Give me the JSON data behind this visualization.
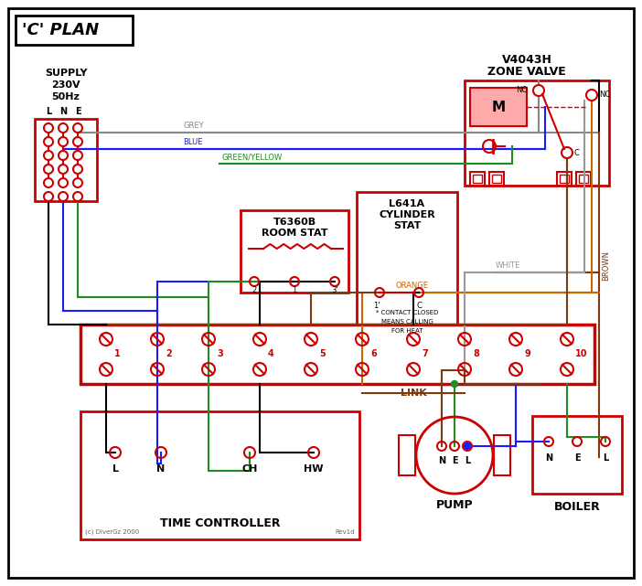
{
  "R": "#cc0000",
  "GR": "#888888",
  "BL": "#1a1aff",
  "GN": "#228B22",
  "BR": "#7B3A10",
  "WH": "#999999",
  "OR": "#CC6600",
  "BK": "#000000",
  "PK": "#ffaaaa",
  "title": "'C' PLAN",
  "zone_valve_title": [
    "V4043H",
    "ZONE VALVE"
  ],
  "room_stat_title": [
    "T6360B",
    "ROOM STAT"
  ],
  "cyl_stat_title": [
    "L641A",
    "CYLINDER",
    "STAT"
  ],
  "terminals": [
    "1",
    "2",
    "3",
    "4",
    "5",
    "6",
    "7",
    "8",
    "9",
    "10"
  ],
  "tc_terms": [
    "L",
    "N",
    "CH",
    "HW"
  ],
  "pump_terms": [
    "N",
    "E",
    "L"
  ],
  "boiler_terms": [
    "N",
    "E",
    "L"
  ],
  "lne": [
    "L",
    "N",
    "E"
  ],
  "supply": [
    "SUPPLY",
    "230V",
    "50Hz"
  ],
  "tc_label": "TIME CONTROLLER",
  "pump_label": "PUMP",
  "boiler_label": "BOILER",
  "link_label": "LINK",
  "contact_note": [
    "* CONTACT CLOSED",
    "MEANS CALLING",
    "FOR HEAT"
  ],
  "copyright": "(c) DiverGz 2000",
  "rev": "Rev1d",
  "no_label": "NO",
  "nc_label": "NC",
  "c_label": "C",
  "m_label": "M",
  "grey_label": "GREY",
  "blue_label": "BLUE",
  "gy_label": "GREEN/YELLOW",
  "brown_label": "BROWN",
  "white_label": "WHITE",
  "orange_label": "ORANGE"
}
